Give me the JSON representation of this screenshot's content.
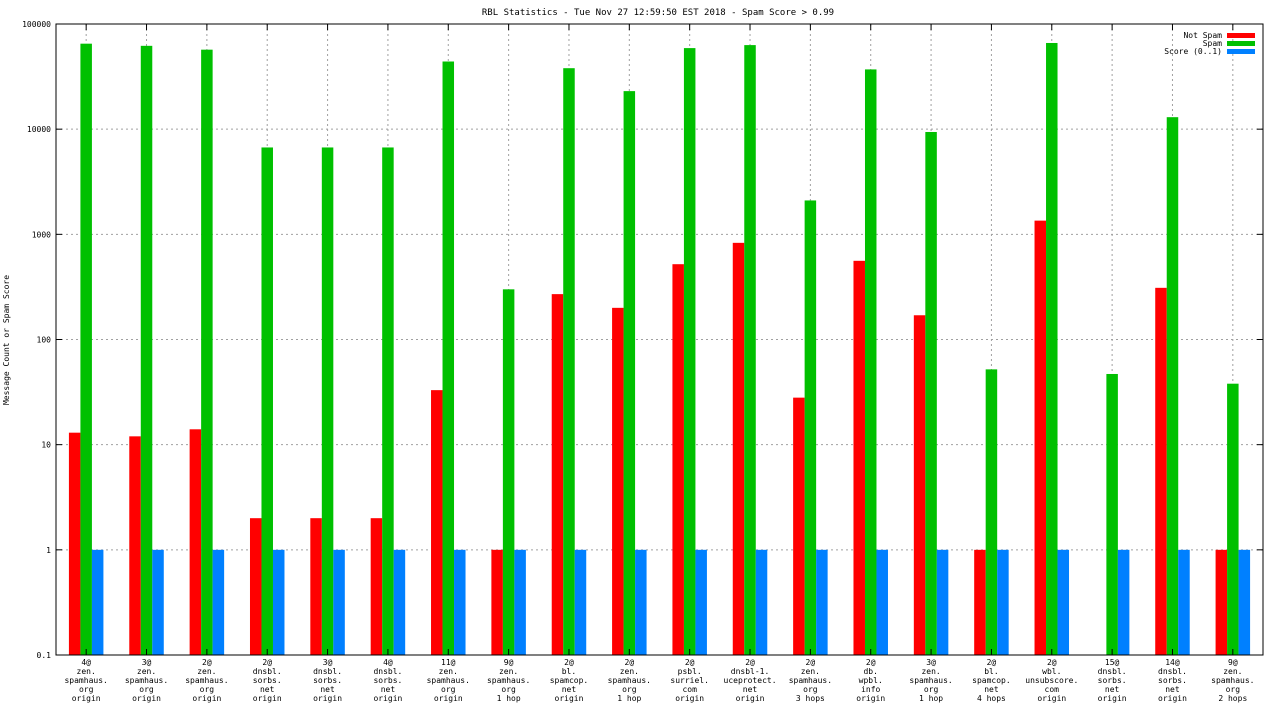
{
  "chart_data": {
    "type": "bar",
    "title": "RBL Statistics - Tue Nov 27 12:59:50 EST 2018 - Spam Score > 0.99",
    "xlabel": "",
    "ylabel": "Message Count or Spam Score",
    "yscale": "log",
    "ylim": [
      0.1,
      100000
    ],
    "yticks": [
      "0.1",
      "1",
      "10",
      "100",
      "1000",
      "10000",
      "100000"
    ],
    "grid": true,
    "legend_position": "top-right",
    "categories": [
      [
        "4@",
        "zen.",
        "spamhaus.",
        "org",
        "origin"
      ],
      [
        "3@",
        "zen.",
        "spamhaus.",
        "org",
        "origin"
      ],
      [
        "2@",
        "zen.",
        "spamhaus.",
        "org",
        "origin"
      ],
      [
        "2@",
        "dnsbl.",
        "sorbs.",
        "net",
        "origin"
      ],
      [
        "3@",
        "dnsbl.",
        "sorbs.",
        "net",
        "origin"
      ],
      [
        "4@",
        "dnsbl.",
        "sorbs.",
        "net",
        "origin"
      ],
      [
        "11@",
        "zen.",
        "spamhaus.",
        "org",
        "origin"
      ],
      [
        "9@",
        "zen.",
        "spamhaus.",
        "org",
        "1 hop"
      ],
      [
        "2@",
        "bl.",
        "spamcop.",
        "net",
        "origin"
      ],
      [
        "2@",
        "zen.",
        "spamhaus.",
        "org",
        "1 hop"
      ],
      [
        "2@",
        "psbl.",
        "surriel.",
        "com",
        "origin"
      ],
      [
        "2@",
        "dnsbl-1.",
        "uceprotect.",
        "net",
        "origin"
      ],
      [
        "2@",
        "zen.",
        "spamhaus.",
        "org",
        "3 hops"
      ],
      [
        "2@",
        "db.",
        "wpbl.",
        "info",
        "origin"
      ],
      [
        "3@",
        "zen.",
        "spamhaus.",
        "org",
        "1 hop"
      ],
      [
        "2@",
        "bl.",
        "spamcop.",
        "net",
        "4 hops"
      ],
      [
        "2@",
        "wbl.",
        "unsubscore.",
        "com",
        "origin"
      ],
      [
        "15@",
        "dnsbl.",
        "sorbs.",
        "net",
        "origin"
      ],
      [
        "14@",
        "dnsbl.",
        "sorbs.",
        "net",
        "origin"
      ],
      [
        "9@",
        "zen.",
        "spamhaus.",
        "org",
        "2 hops"
      ]
    ],
    "series": [
      {
        "name": "Not Spam",
        "color": "#ff0000",
        "values": [
          13,
          12,
          14,
          2,
          2,
          2,
          33,
          1,
          270,
          200,
          520,
          830,
          28,
          560,
          170,
          1,
          1350,
          null,
          310,
          1
        ]
      },
      {
        "name": "Spam",
        "color": "#00c000",
        "values": [
          65000,
          62000,
          57000,
          6700,
          6700,
          6700,
          44000,
          300,
          38000,
          23000,
          59000,
          63000,
          2100,
          37000,
          9400,
          52,
          66000,
          47,
          13000,
          38
        ]
      },
      {
        "name": "Score (0..1)",
        "color": "#0080ff",
        "values": [
          1,
          1,
          1,
          1,
          1,
          1,
          1,
          1,
          1,
          1,
          1,
          1,
          1,
          1,
          1,
          1,
          1,
          1,
          1,
          1
        ]
      }
    ]
  }
}
